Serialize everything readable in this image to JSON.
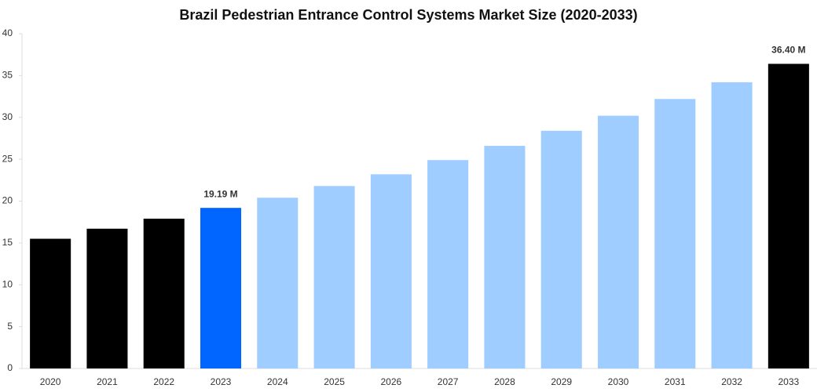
{
  "chart_data": {
    "type": "bar",
    "title": "Brazil Pedestrian Entrance Control Systems Market Size (2020-2033)",
    "categories": [
      "2020",
      "2021",
      "2022",
      "2023",
      "2024",
      "2025",
      "2026",
      "2027",
      "2028",
      "2029",
      "2030",
      "2031",
      "2032",
      "2033"
    ],
    "values": [
      15.5,
      16.7,
      17.9,
      19.19,
      20.4,
      21.8,
      23.2,
      24.9,
      26.6,
      28.4,
      30.2,
      32.2,
      34.2,
      36.4
    ],
    "value_labels": [
      null,
      null,
      null,
      "19.19 M",
      null,
      null,
      null,
      null,
      null,
      null,
      null,
      null,
      null,
      "36.40 M"
    ],
    "colors": [
      "#000000",
      "#000000",
      "#000000",
      "#0066ff",
      "#a0cdff",
      "#a0cdff",
      "#a0cdff",
      "#a0cdff",
      "#a0cdff",
      "#a0cdff",
      "#a0cdff",
      "#a0cdff",
      "#a0cdff",
      "#000000"
    ],
    "ylim": [
      0,
      40
    ],
    "yticks": [
      0,
      5,
      10,
      15,
      20,
      25,
      30,
      35,
      40
    ],
    "grid": false
  }
}
